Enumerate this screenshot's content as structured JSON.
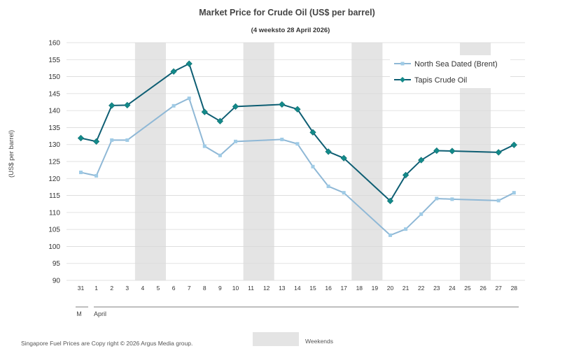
{
  "chart_data": {
    "type": "line",
    "title": "Market Price for Crude  Oil (US$ per barrel)",
    "subtitle": "(4 weeksto 28 April 2026)",
    "ylabel": "(US$ per barrel)",
    "ylim": [
      90,
      160
    ],
    "yticks": [
      90,
      95,
      100,
      105,
      110,
      115,
      120,
      125,
      130,
      135,
      140,
      145,
      150,
      155,
      160
    ],
    "grid": true,
    "legend_position": "top-right",
    "categories": [
      "31",
      "1",
      "2",
      "3",
      "4",
      "5",
      "6",
      "7",
      "8",
      "9",
      "10",
      "11",
      "12",
      "13",
      "14",
      "15",
      "16",
      "17",
      "18",
      "19",
      "20",
      "21",
      "22",
      "23",
      "24",
      "25",
      "26",
      "27",
      "28"
    ],
    "month_labels": [
      "M",
      "April"
    ],
    "weekend_shading": [
      [
        "4",
        "5"
      ],
      [
        "11",
        "12"
      ],
      [
        "18",
        "19"
      ],
      [
        "25",
        "26"
      ]
    ],
    "series": [
      {
        "name": "North Sea Dated (Brent)",
        "color": "#8fb8d6",
        "marker": "square",
        "values": [
          121.8,
          120.8,
          131.3,
          131.3,
          null,
          null,
          141.4,
          143.6,
          129.5,
          126.8,
          130.9,
          null,
          null,
          131.5,
          130.2,
          123.5,
          117.7,
          115.8,
          null,
          null,
          103.3,
          105.1,
          109.5,
          114.1,
          113.9,
          null,
          null,
          113.5,
          115.8
        ]
      },
      {
        "name": "Tapis Crude Oil",
        "color": "#0e5e73",
        "marker": "diamond",
        "values": [
          131.9,
          130.9,
          141.5,
          141.6,
          null,
          null,
          151.5,
          153.8,
          139.6,
          136.9,
          141.2,
          null,
          null,
          141.8,
          140.4,
          133.6,
          127.9,
          126.0,
          null,
          null,
          113.4,
          121.0,
          125.4,
          128.2,
          128.1,
          null,
          null,
          127.7,
          129.9
        ]
      }
    ]
  },
  "footer": {
    "copyright": "Singapore  Fuel Prices are  Copy right © 2026 Argus Media  group.",
    "weekends_label": "Weekends",
    "weekend_color": "#e4e4e4"
  }
}
